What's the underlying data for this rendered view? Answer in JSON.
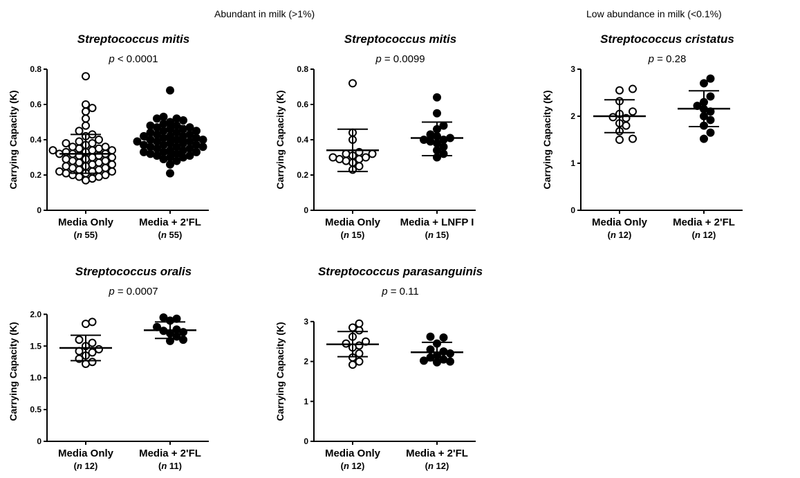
{
  "headers": {
    "abundant": "Abundant in milk (>1%)",
    "low": "Low abundance in milk (<0.1%)"
  },
  "chart_data": [
    {
      "type": "scatter",
      "title": "Streptococcus mitis",
      "pvalue": {
        "p": "p",
        "rest": " < 0.0001"
      },
      "ylabel": "Carrying Capacity (K)",
      "ylim": [
        0,
        0.8
      ],
      "yticks": [
        0,
        0.2,
        0.4,
        0.6,
        0.8
      ],
      "ytick_labels": [
        "0",
        "0.2",
        "0.4",
        "0.6",
        "0.8"
      ],
      "categories": [
        "Media Only",
        "Media + 2'FL"
      ],
      "ncounts": [
        {
          "n": "n",
          "rest": " 55)"
        },
        {
          "n": "n",
          "rest": " 55)"
        }
      ],
      "series": [
        {
          "fill": "open",
          "mean": 0.32,
          "sd": [
            0.21,
            0.43
          ],
          "values": [
            0.76,
            0.6,
            0.58,
            0.56,
            0.52,
            0.48,
            0.45,
            0.43,
            0.42,
            0.4,
            0.39,
            0.38,
            0.38,
            0.37,
            0.36,
            0.36,
            0.35,
            0.35,
            0.34,
            0.34,
            0.34,
            0.33,
            0.33,
            0.32,
            0.32,
            0.32,
            0.31,
            0.31,
            0.3,
            0.3,
            0.29,
            0.29,
            0.28,
            0.28,
            0.27,
            0.27,
            0.26,
            0.26,
            0.25,
            0.25,
            0.24,
            0.24,
            0.23,
            0.23,
            0.22,
            0.22,
            0.22,
            0.21,
            0.21,
            0.2,
            0.2,
            0.19,
            0.19,
            0.18,
            0.17
          ]
        },
        {
          "fill": "filled",
          "mean": 0.4,
          "sd": [
            0.32,
            0.48
          ],
          "values": [
            0.68,
            0.53,
            0.52,
            0.52,
            0.51,
            0.5,
            0.49,
            0.48,
            0.48,
            0.47,
            0.47,
            0.46,
            0.46,
            0.45,
            0.45,
            0.44,
            0.44,
            0.43,
            0.43,
            0.42,
            0.42,
            0.42,
            0.41,
            0.41,
            0.4,
            0.4,
            0.4,
            0.39,
            0.39,
            0.39,
            0.38,
            0.38,
            0.37,
            0.37,
            0.37,
            0.36,
            0.36,
            0.36,
            0.35,
            0.35,
            0.34,
            0.34,
            0.33,
            0.33,
            0.33,
            0.32,
            0.32,
            0.31,
            0.31,
            0.3,
            0.3,
            0.29,
            0.28,
            0.26,
            0.21
          ]
        }
      ]
    },
    {
      "type": "scatter",
      "title": "Streptococcus mitis",
      "pvalue": {
        "p": "p",
        "rest": " = 0.0099"
      },
      "ylabel": "Carrying Capacity (K)",
      "ylim": [
        0,
        0.8
      ],
      "yticks": [
        0,
        0.2,
        0.4,
        0.6,
        0.8
      ],
      "ytick_labels": [
        "0",
        "0.2",
        "0.4",
        "0.6",
        "0.8"
      ],
      "categories": [
        "Media Only",
        "Media + LNFP I"
      ],
      "ncounts": [
        {
          "n": "n",
          "rest": " 15)"
        },
        {
          "n": "n",
          "rest": " 15)"
        }
      ],
      "series": [
        {
          "fill": "open",
          "mean": 0.34,
          "sd": [
            0.22,
            0.46
          ],
          "values": [
            0.72,
            0.44,
            0.4,
            0.33,
            0.32,
            0.32,
            0.31,
            0.3,
            0.3,
            0.29,
            0.29,
            0.28,
            0.27,
            0.25,
            0.23
          ]
        },
        {
          "fill": "filled",
          "mean": 0.41,
          "sd": [
            0.31,
            0.5
          ],
          "values": [
            0.64,
            0.55,
            0.48,
            0.46,
            0.43,
            0.42,
            0.41,
            0.4,
            0.4,
            0.39,
            0.38,
            0.36,
            0.34,
            0.32,
            0.3
          ]
        }
      ]
    },
    {
      "type": "scatter",
      "title": "Streptococcus cristatus",
      "pvalue": {
        "p": "p",
        "rest": " = 0.28"
      },
      "ylabel": "Carrying Capacity (K)",
      "ylim": [
        0,
        3
      ],
      "yticks": [
        0,
        1,
        2,
        3
      ],
      "ytick_labels": [
        "0",
        "1",
        "2",
        "3"
      ],
      "categories": [
        "Media Only",
        "Media + 2'FL"
      ],
      "ncounts": [
        {
          "n": "n",
          "rest": " 12)"
        },
        {
          "n": "n",
          "rest": " 12)"
        }
      ],
      "series": [
        {
          "fill": "open",
          "mean": 2.0,
          "sd": [
            1.65,
            2.35
          ],
          "values": [
            2.58,
            2.55,
            2.32,
            2.1,
            2.05,
            1.98,
            1.96,
            1.85,
            1.8,
            1.68,
            1.52,
            1.5
          ]
        },
        {
          "fill": "filled",
          "mean": 2.16,
          "sd": [
            1.78,
            2.54
          ],
          "values": [
            2.8,
            2.7,
            2.42,
            2.3,
            2.22,
            2.15,
            2.1,
            2.0,
            1.92,
            1.8,
            1.65,
            1.52
          ]
        }
      ]
    },
    {
      "type": "scatter",
      "title": "Streptococcus oralis",
      "pvalue": {
        "p": "p",
        "rest": " = 0.0007"
      },
      "ylabel": "Carrying Capacity (K)",
      "ylim": [
        0,
        2.2
      ],
      "yticks": [
        0,
        0.5,
        1.0,
        1.5,
        2.0
      ],
      "ytick_labels": [
        "0",
        "0.5",
        "1.0",
        "1.5",
        "2.0"
      ],
      "categories": [
        "Media Only",
        "Media + 2'FL"
      ],
      "ncounts": [
        {
          "n": "n",
          "rest": " 12)"
        },
        {
          "n": "n",
          "rest": " 11)"
        }
      ],
      "series": [
        {
          "fill": "open",
          "mean": 1.47,
          "sd": [
            1.27,
            1.67
          ],
          "values": [
            1.88,
            1.85,
            1.6,
            1.55,
            1.5,
            1.45,
            1.42,
            1.4,
            1.35,
            1.3,
            1.25,
            1.22
          ]
        },
        {
          "fill": "filled",
          "mean": 1.75,
          "sd": [
            1.62,
            1.88
          ],
          "values": [
            1.95,
            1.93,
            1.9,
            1.8,
            1.76,
            1.74,
            1.72,
            1.7,
            1.65,
            1.6,
            1.58
          ]
        }
      ]
    },
    {
      "type": "scatter",
      "title": "Streptococcus parasanguinis",
      "pvalue": {
        "p": "p",
        "rest": " = 0.11"
      },
      "ylabel": "Carrying Capacity (K)",
      "ylim": [
        0,
        3.5
      ],
      "yticks": [
        0,
        1,
        2,
        3
      ],
      "ytick_labels": [
        "0",
        "1",
        "2",
        "3"
      ],
      "categories": [
        "Media Only",
        "Media + 2'FL"
      ],
      "ncounts": [
        {
          "n": "n",
          "rest": " 12)"
        },
        {
          "n": "n",
          "rest": " 12)"
        }
      ],
      "series": [
        {
          "fill": "open",
          "mean": 2.43,
          "sd": [
            2.12,
            2.75
          ],
          "values": [
            2.95,
            2.85,
            2.78,
            2.62,
            2.5,
            2.45,
            2.4,
            2.35,
            2.2,
            2.1,
            2.0,
            1.92
          ]
        },
        {
          "fill": "filled",
          "mean": 2.23,
          "sd": [
            2.02,
            2.48
          ],
          "values": [
            2.62,
            2.6,
            2.45,
            2.3,
            2.25,
            2.2,
            2.15,
            2.1,
            2.05,
            2.02,
            2.0,
            1.98
          ]
        }
      ]
    }
  ]
}
